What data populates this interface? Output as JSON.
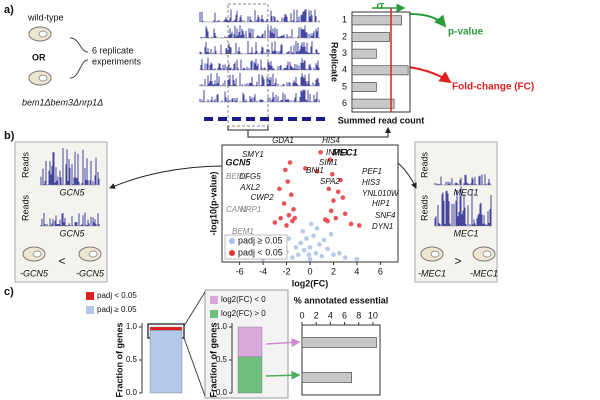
{
  "figure": {
    "panel_labels": [
      "a)",
      "b)",
      "c)"
    ]
  },
  "panel_a": {
    "strain_wt": "wild-type",
    "or": "OR",
    "strain_mutant": "bem1Δbem3Δnrp1Δ",
    "replicates": "6 replicate",
    "experiments": "experiments",
    "sigma": "σ",
    "mu": "μ",
    "p_value": "p-value",
    "fold_change": "Fold-change (FC)"
  },
  "panel_b": {
    "left": {
      "reads_top": "Reads",
      "reads_bottom": "Reads",
      "gene_top": "GCN5",
      "gene_bottom": "GCN5",
      "strain_left": "-GCN5",
      "relation": "<",
      "strain_right": "-GCN5"
    },
    "right": {
      "reads_top": "Reads",
      "reads_bottom": "Reads",
      "gene_top": "MEC1",
      "gene_bottom": "MEC1",
      "strain_left": "-MEC1",
      "relation": ">",
      "strain_right": "-MEC1"
    }
  },
  "chart_data": [
    {
      "type": "bar",
      "horizontal": true,
      "categories": [
        "1",
        "2",
        "3",
        "4",
        "5",
        "6"
      ],
      "values": [
        53,
        40,
        26,
        60,
        26,
        45
      ],
      "color": "#c8c8c8",
      "xlim": [
        0,
        62
      ],
      "xlabel": "Summed read count",
      "ylabel": "Replicate",
      "mean": 41.7,
      "mean_color": "#e02020"
    },
    {
      "type": "scatter",
      "xlabel": "log2(FC)",
      "ylabel": "-log10(p-value)",
      "xlim": [
        -7.5,
        7.5
      ],
      "ylim": [
        0,
        8
      ],
      "xticks": [
        -6,
        -4,
        -2,
        0,
        2,
        4,
        6
      ],
      "legend": "lower left",
      "series": [
        {
          "name": "padj ≥ 0.05",
          "color": "#a9c1e6",
          "x": [
            -1.5,
            -1,
            -0.5,
            0,
            0.5,
            1,
            1.5,
            -2,
            2,
            -0.8,
            0.8,
            -0.3,
            0.3,
            -1.2,
            1.2,
            0,
            -2.5,
            2.5,
            -3,
            3,
            -0.6,
            0.6,
            -4,
            4,
            -1.8,
            1.8,
            0.1,
            -0.1,
            -5.5,
            -6
          ],
          "y": [
            0.3,
            0.5,
            0.8,
            0.2,
            0.6,
            0.4,
            0.9,
            0.7,
            0.5,
            1.3,
            1.2,
            1.6,
            1.8,
            1,
            1.5,
            1,
            0.4,
            0.6,
            0.3,
            0.3,
            2.1,
            2.3,
            0.2,
            0.2,
            1.6,
            1.9,
            2.6,
            0.5,
            0.3,
            1.2
          ]
        },
        {
          "name": "padj < 0.05",
          "color": "#e8343a",
          "x": [
            -2,
            -1.8,
            -2.2,
            -1.5,
            -2.5,
            -1.6,
            -1.9,
            -2.1,
            -1.7,
            -1.4,
            1.5,
            1.8,
            2,
            1.6,
            2.2,
            1.9,
            2.4,
            1.7,
            0.6,
            -0.4,
            3,
            3.5,
            2.8,
            -3,
            4.2,
            1.3,
            -1.3,
            0.9,
            -2.6,
            2.6
          ],
          "y": [
            2.5,
            3.2,
            4,
            2.8,
            3,
            4.6,
            5.5,
            6.3,
            6.8,
            3.6,
            2.8,
            3.5,
            4.2,
            5,
            3,
            6,
            4.8,
            7,
            6.2,
            6.4,
            3.3,
            2.6,
            4.4,
            2.7,
            2.5,
            2.9,
            3,
            7.5,
            5,
            5.6
          ]
        }
      ],
      "annotations": [
        "GDA1",
        "HIS4",
        "SMY1",
        "INP51",
        "GCN5",
        "SIM1",
        "MEC1",
        "DFG5",
        "BNI1",
        "PEF1",
        "BEM3",
        "AXL2",
        "SPA2",
        "HIS3",
        "YNL010W",
        "CWP2",
        "HIP1",
        "CAN1",
        "NRP1",
        "SNF4",
        "DYN1",
        "BEM1"
      ]
    },
    {
      "type": "stacked_bar",
      "ylabel": "Fraction of genes",
      "categories": [
        null
      ],
      "ylim": [
        0,
        1
      ],
      "yticks": [
        {
          "value": 0,
          "label": "0.0"
        },
        0.5,
        {
          "value": 1,
          "label": "1.0"
        }
      ],
      "series": [
        {
          "name": "padj ≥ 0.05",
          "color": "#b3c7e8",
          "values": [
            0.95
          ]
        },
        {
          "name": "padj < 0.05",
          "color": "#e02020",
          "values": [
            0.05
          ]
        }
      ]
    },
    {
      "type": "stacked_bar",
      "ylabel": "Fraction of genes",
      "categories": [
        null
      ],
      "ylim": [
        0,
        1
      ],
      "yticks": [
        {
          "value": 0,
          "label": "0.0"
        },
        0.5,
        {
          "value": 1,
          "label": "1.0"
        }
      ],
      "series": [
        {
          "name": "log2(FC) > 0",
          "color": "#6fbf7f",
          "values": [
            0.55
          ]
        },
        {
          "name": "log2(FC) < 0",
          "color": "#d9a9dd",
          "values": [
            0.45
          ]
        }
      ]
    },
    {
      "type": "bar",
      "horizontal": true,
      "title": "% annotated essential",
      "categories": [
        null,
        null
      ],
      "values": [
        10.5,
        7
      ],
      "color": "#c8c8c8",
      "xlim": [
        0,
        11
      ],
      "xticks": [
        0,
        2,
        4,
        6,
        8,
        10
      ],
      "xaxis": "top"
    }
  ]
}
